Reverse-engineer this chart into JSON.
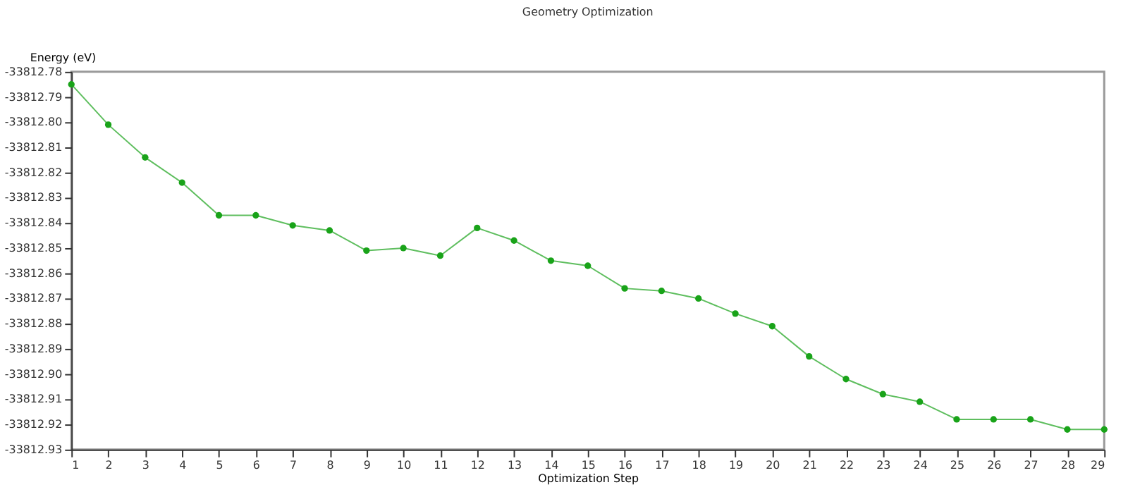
{
  "chart_data": {
    "type": "line",
    "title": "Geometry Optimization",
    "xlabel": "Optimization Step",
    "ylabel": "Energy (eV)",
    "x": [
      1,
      2,
      3,
      4,
      5,
      6,
      7,
      8,
      9,
      10,
      11,
      12,
      13,
      14,
      15,
      16,
      17,
      18,
      19,
      20,
      21,
      22,
      23,
      24,
      25,
      26,
      27,
      28,
      29
    ],
    "series": [
      {
        "color": "#19a319",
        "values": [
          -33812.785,
          -33812.801,
          -33812.814,
          -33812.824,
          -33812.837,
          -33812.837,
          -33812.841,
          -33812.843,
          -33812.851,
          -33812.85,
          -33812.853,
          -33812.842,
          -33812.847,
          -33812.855,
          -33812.857,
          -33812.866,
          -33812.867,
          -33812.87,
          -33812.876,
          -33812.881,
          -33812.893,
          -33812.902,
          -33812.908,
          -33812.911,
          -33812.918,
          -33812.918,
          -33812.918,
          -33812.922,
          -33812.922
        ]
      }
    ],
    "xlim": [
      1,
      29
    ],
    "xticks": [
      1,
      2,
      3,
      4,
      5,
      6,
      7,
      8,
      9,
      10,
      11,
      12,
      13,
      14,
      15,
      16,
      17,
      18,
      19,
      20,
      21,
      22,
      23,
      24,
      25,
      26,
      27,
      28,
      29
    ],
    "ylim": [
      -33812.93,
      -33812.78
    ],
    "yticks": [
      -33812.93,
      -33812.92,
      -33812.91,
      {
        "value": -33812.9,
        "label": "-33812.90"
      },
      -33812.89,
      -33812.88,
      -33812.87,
      -33812.86,
      -33812.85,
      -33812.84,
      -33812.83,
      -33812.82,
      -33812.81,
      {
        "value": -33812.8,
        "label": "-33812.80"
      },
      -33812.79,
      -33812.78
    ],
    "grid": false,
    "marker": "circle",
    "line_style": "solid"
  }
}
